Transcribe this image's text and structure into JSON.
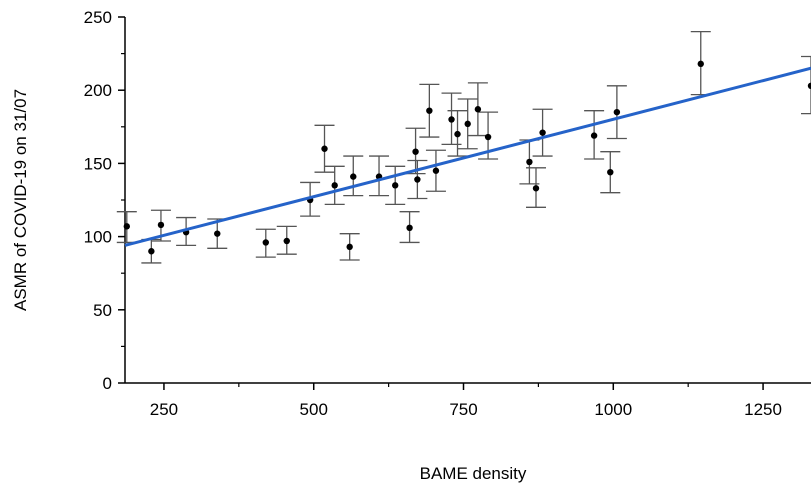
{
  "chart_data": {
    "type": "scatter",
    "title": "",
    "xlabel": "BAME density",
    "ylabel": "ASMR of COVID-19 on 31/07",
    "xlim": [
      185,
      1330
    ],
    "ylim": [
      0,
      250
    ],
    "x_ticks": [
      250,
      500,
      750,
      1000,
      1250
    ],
    "y_ticks": [
      0,
      50,
      100,
      150,
      200,
      250
    ],
    "x_tick_labels": [
      "250",
      "500",
      "750",
      "1000",
      "1250"
    ],
    "y_tick_labels": [
      "0",
      "50",
      "100",
      "150",
      "200",
      "250"
    ],
    "grid": false,
    "legend": "none",
    "colors": {
      "points": "#000000",
      "error_bars": "#555555",
      "fit_line": "#2563c9"
    },
    "points": [
      {
        "x": 188,
        "y": 107,
        "ci": [
          96,
          117
        ]
      },
      {
        "x": 229,
        "y": 90,
        "ci": [
          82,
          98
        ]
      },
      {
        "x": 245,
        "y": 108,
        "ci": [
          97,
          118
        ]
      },
      {
        "x": 287,
        "y": 103,
        "ci": [
          94,
          113
        ]
      },
      {
        "x": 339,
        "y": 102,
        "ci": [
          92,
          112
        ]
      },
      {
        "x": 420,
        "y": 96,
        "ci": [
          86,
          105
        ]
      },
      {
        "x": 455,
        "y": 97,
        "ci": [
          88,
          107
        ]
      },
      {
        "x": 494,
        "y": 125,
        "ci": [
          114,
          137
        ]
      },
      {
        "x": 518,
        "y": 160,
        "ci": [
          144,
          176
        ]
      },
      {
        "x": 535,
        "y": 135,
        "ci": [
          122,
          148
        ]
      },
      {
        "x": 560,
        "y": 93,
        "ci": [
          84,
          102
        ]
      },
      {
        "x": 566,
        "y": 141,
        "ci": [
          128,
          155
        ]
      },
      {
        "x": 609,
        "y": 141,
        "ci": [
          128,
          155
        ]
      },
      {
        "x": 636,
        "y": 135,
        "ci": [
          122,
          148
        ]
      },
      {
        "x": 660,
        "y": 106,
        "ci": [
          96,
          117
        ]
      },
      {
        "x": 670,
        "y": 158,
        "ci": [
          143,
          174
        ]
      },
      {
        "x": 673,
        "y": 139,
        "ci": [
          126,
          152
        ]
      },
      {
        "x": 693,
        "y": 186,
        "ci": [
          168,
          204
        ]
      },
      {
        "x": 704,
        "y": 145,
        "ci": [
          131,
          159
        ]
      },
      {
        "x": 730,
        "y": 180,
        "ci": [
          163,
          198
        ]
      },
      {
        "x": 740,
        "y": 170,
        "ci": [
          155,
          186
        ]
      },
      {
        "x": 757,
        "y": 177,
        "ci": [
          160,
          194
        ]
      },
      {
        "x": 774,
        "y": 187,
        "ci": [
          169,
          205
        ]
      },
      {
        "x": 791,
        "y": 168,
        "ci": [
          153,
          185
        ]
      },
      {
        "x": 860,
        "y": 151,
        "ci": [
          136,
          166
        ]
      },
      {
        "x": 871,
        "y": 133,
        "ci": [
          120,
          147
        ]
      },
      {
        "x": 882,
        "y": 171,
        "ci": [
          155,
          187
        ]
      },
      {
        "x": 968,
        "y": 169,
        "ci": [
          153,
          186
        ]
      },
      {
        "x": 995,
        "y": 144,
        "ci": [
          130,
          158
        ]
      },
      {
        "x": 1006,
        "y": 185,
        "ci": [
          167,
          203
        ]
      },
      {
        "x": 1146,
        "y": 218,
        "ci": [
          197,
          240
        ]
      },
      {
        "x": 1330,
        "y": 203,
        "ci": [
          184,
          223
        ]
      }
    ],
    "fit_line": {
      "x": [
        185,
        1330
      ],
      "y": [
        94,
        215
      ]
    }
  }
}
